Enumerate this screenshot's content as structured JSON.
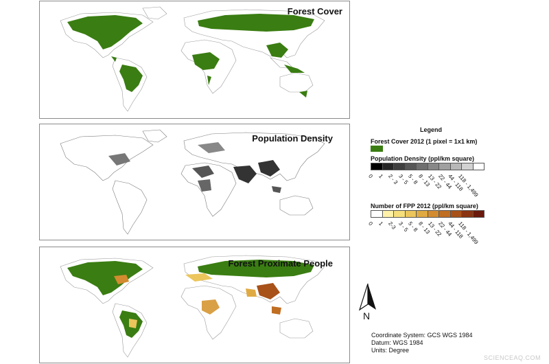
{
  "panels": [
    {
      "title": "Forest Cover"
    },
    {
      "title": "Population Density"
    },
    {
      "title": "Forest Proximate People"
    }
  ],
  "legend": {
    "heading": "Legend",
    "forest_cover_label": "Forest Cover 2012 (1 pixel = 1x1 km)",
    "forest_color": "#3a7d12",
    "population_density": {
      "label": "Population Density (ppl/km square)",
      "classes": [
        "0",
        "1",
        "2 - 3",
        "3 - 5",
        "5 - 8",
        "8 - 13",
        "13 - 22",
        "22 - 44",
        "44 - 118",
        "118 - 1,499"
      ],
      "colors": [
        "#000000",
        "#262626",
        "#3f3f3f",
        "#575757",
        "#6f6f6f",
        "#888888",
        "#a0a0a0",
        "#b8b8b8",
        "#d2d2d2",
        "#ffffff"
      ]
    },
    "fpp": {
      "label": "Number of FPP 2012 (ppl/km square)",
      "classes": [
        "0",
        "1",
        "2-3",
        "3 - 5",
        "5 - 8",
        "8 - 13",
        "13 - 22",
        "22 - 44",
        "44 - 118",
        "118 - 1,499"
      ],
      "colors": [
        "#ffffff",
        "#fff2a8",
        "#f6de7a",
        "#ecc65c",
        "#e0aa42",
        "#d28c2f",
        "#c06e22",
        "#a85119",
        "#8a3412",
        "#6a1a0c"
      ]
    }
  },
  "north_arrow": {
    "letter": "N"
  },
  "coordinate_info": [
    "Coordinate System: GCS WGS 1984",
    "Datum: WGS 1984",
    "Units: Degree"
  ],
  "watermark": "SCIENCEAQ.COM"
}
